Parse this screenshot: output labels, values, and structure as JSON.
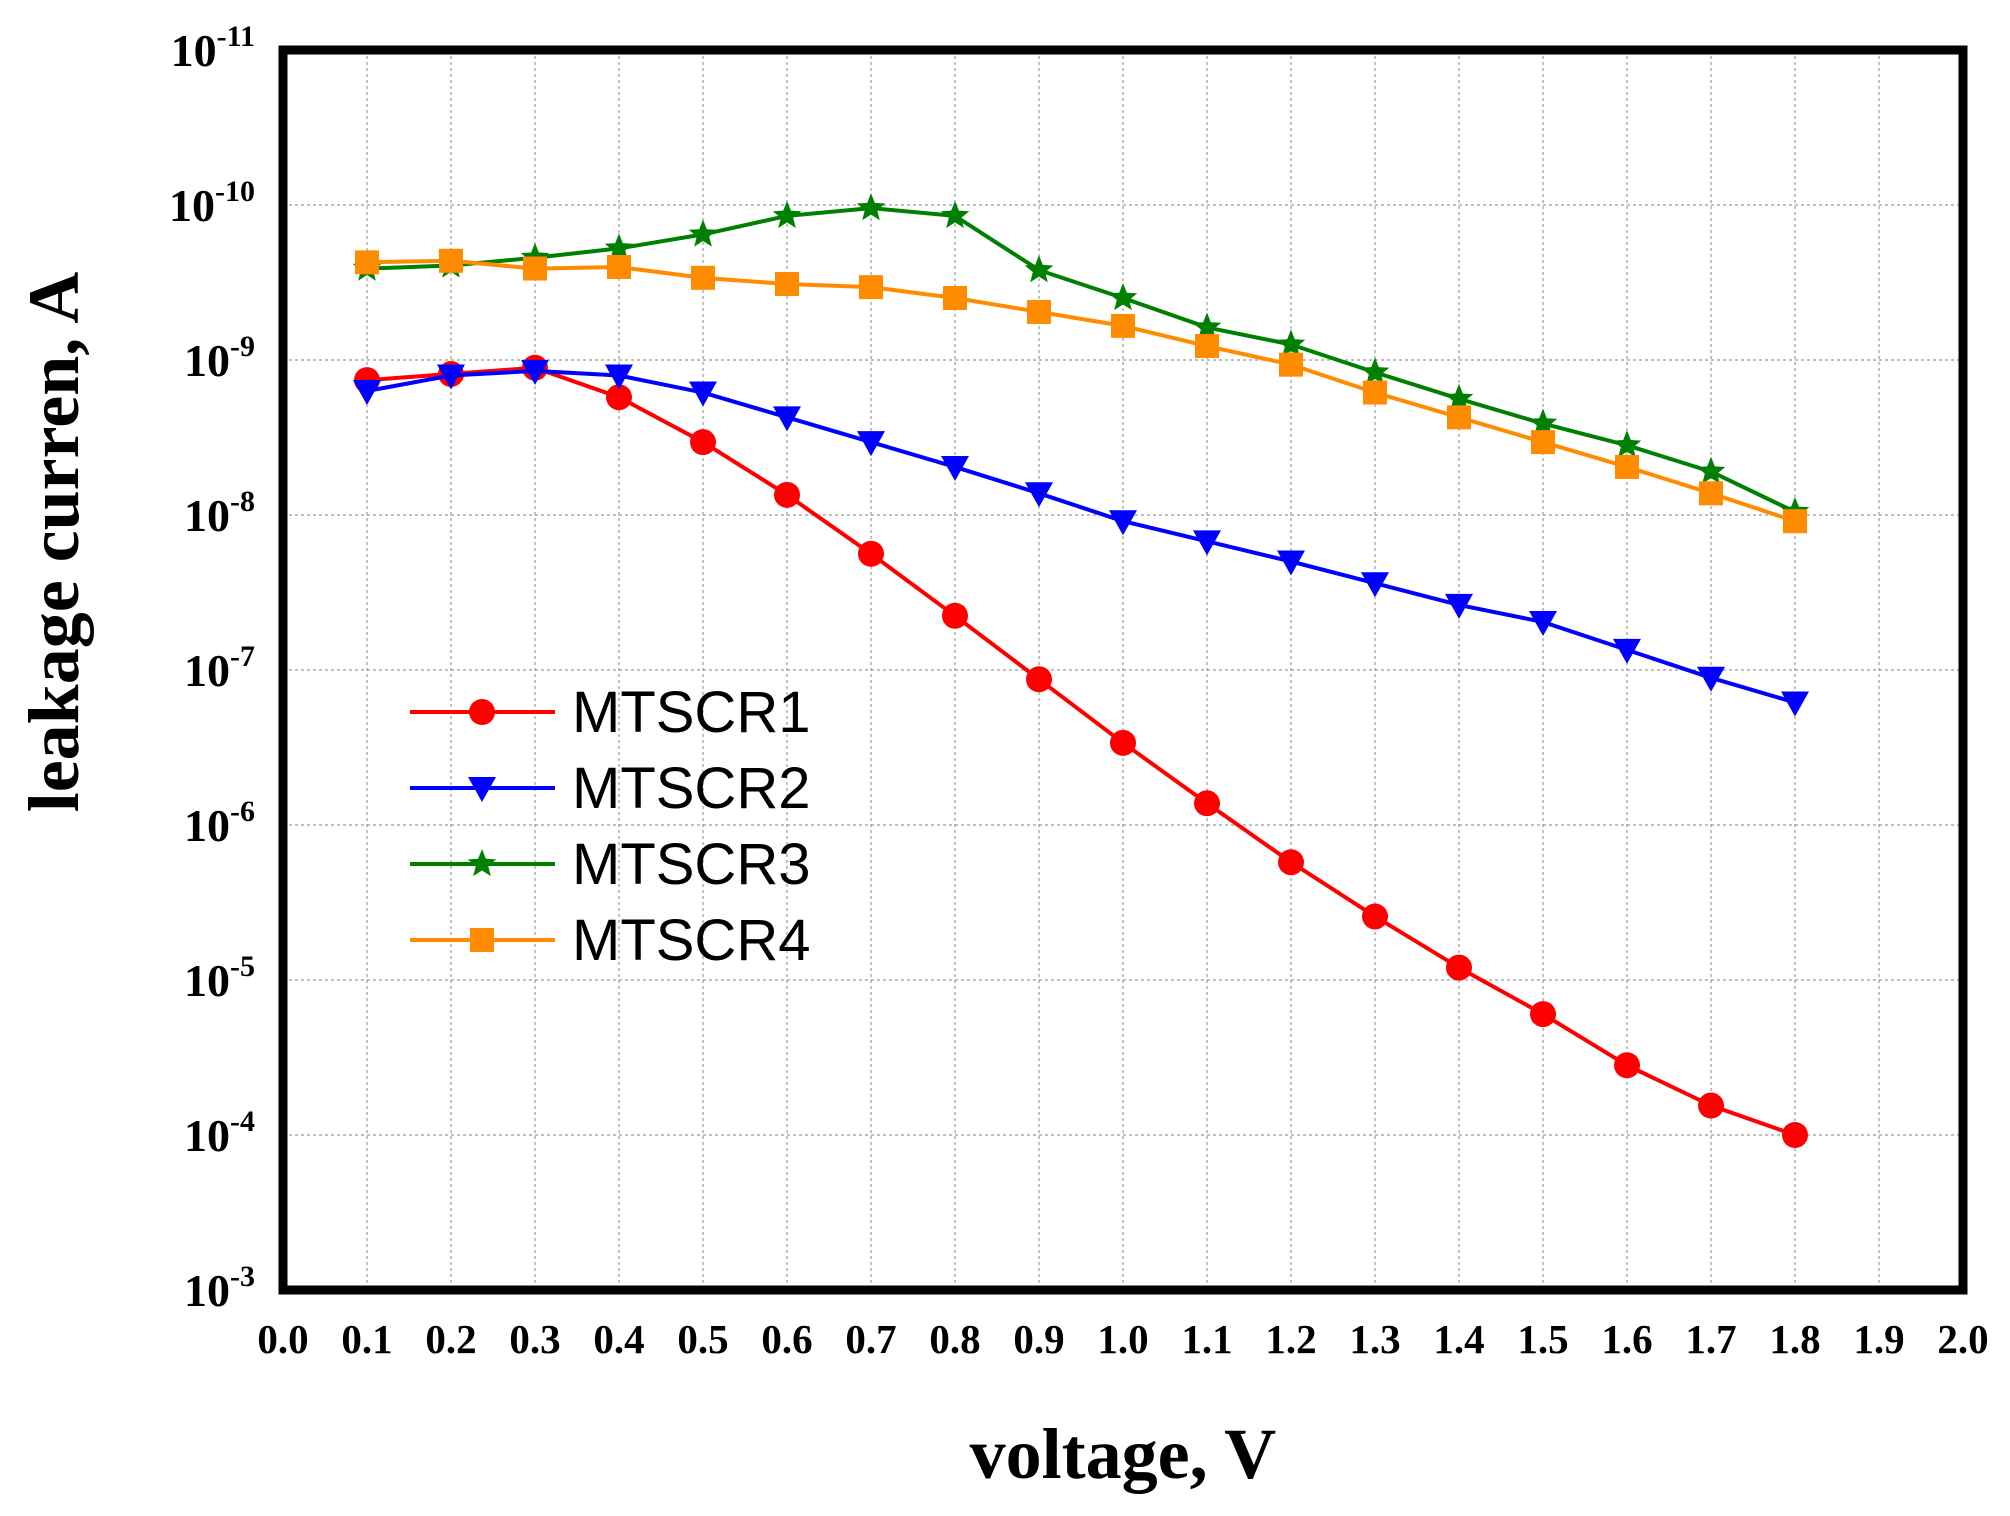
{
  "chart_data": {
    "type": "line",
    "title": "",
    "xlabel": "voltage, V",
    "ylabel": "leakage curren, A",
    "xlim": [
      0.0,
      2.0
    ],
    "xticks": [
      "0.0",
      "0.1",
      "0.2",
      "0.3",
      "0.4",
      "0.5",
      "0.6",
      "0.7",
      "0.8",
      "0.9",
      "1.0",
      "1.1",
      "1.2",
      "1.3",
      "1.4",
      "1.5",
      "1.6",
      "1.7",
      "1.8",
      "1.9",
      "2.0"
    ],
    "ylim_exponent": [
      -11,
      -3
    ],
    "y_axis_direction": "exponent increases downward",
    "yticks": [
      {
        "base": "10",
        "exp": "-11"
      },
      {
        "base": "10",
        "exp": "-10"
      },
      {
        "base": "10",
        "exp": "-9"
      },
      {
        "base": "10",
        "exp": "-8"
      },
      {
        "base": "10",
        "exp": "-7"
      },
      {
        "base": "10",
        "exp": "-6"
      },
      {
        "base": "10",
        "exp": "-5"
      },
      {
        "base": "10",
        "exp": "-4"
      },
      {
        "base": "10",
        "exp": "-3"
      }
    ],
    "grid": true,
    "legend_position": "lower-left",
    "x": [
      0.1,
      0.2,
      0.3,
      0.4,
      0.5,
      0.6,
      0.7,
      0.8,
      0.9,
      1.0,
      1.1,
      1.2,
      1.3,
      1.4,
      1.5,
      1.6,
      1.7,
      1.8
    ],
    "series": [
      {
        "name": "MTSCR1",
        "color": "#ff0000",
        "marker": "circle",
        "log10_values": [
          -8.87,
          -8.91,
          -8.95,
          -8.76,
          -8.47,
          -8.13,
          -7.75,
          -7.35,
          -6.94,
          -6.53,
          -6.14,
          -5.76,
          -5.41,
          -5.08,
          -4.78,
          -4.45,
          -4.19,
          -4.0
        ]
      },
      {
        "name": "MTSCR2",
        "color": "#0000ff",
        "marker": "triangle-down",
        "log10_values": [
          -8.8,
          -8.9,
          -8.93,
          -8.9,
          -8.79,
          -8.63,
          -8.47,
          -8.31,
          -8.14,
          -7.96,
          -7.83,
          -7.7,
          -7.56,
          -7.42,
          -7.31,
          -7.13,
          -6.95,
          -6.79
        ]
      },
      {
        "name": "MTSCR3",
        "color": "#008000",
        "marker": "star",
        "log10_values": [
          -9.59,
          -9.61,
          -9.66,
          -9.72,
          -9.81,
          -9.93,
          -9.98,
          -9.93,
          -9.58,
          -9.4,
          -9.21,
          -9.1,
          -8.92,
          -8.75,
          -8.59,
          -8.45,
          -8.28,
          -8.02
        ]
      },
      {
        "name": "MTSCR4",
        "color": "#ff8c00",
        "marker": "square",
        "log10_values": [
          -9.63,
          -9.64,
          -9.59,
          -9.6,
          -9.53,
          -9.49,
          -9.47,
          -9.4,
          -9.31,
          -9.22,
          -9.09,
          -8.97,
          -8.79,
          -8.63,
          -8.47,
          -8.31,
          -8.14,
          -7.96
        ]
      }
    ]
  }
}
